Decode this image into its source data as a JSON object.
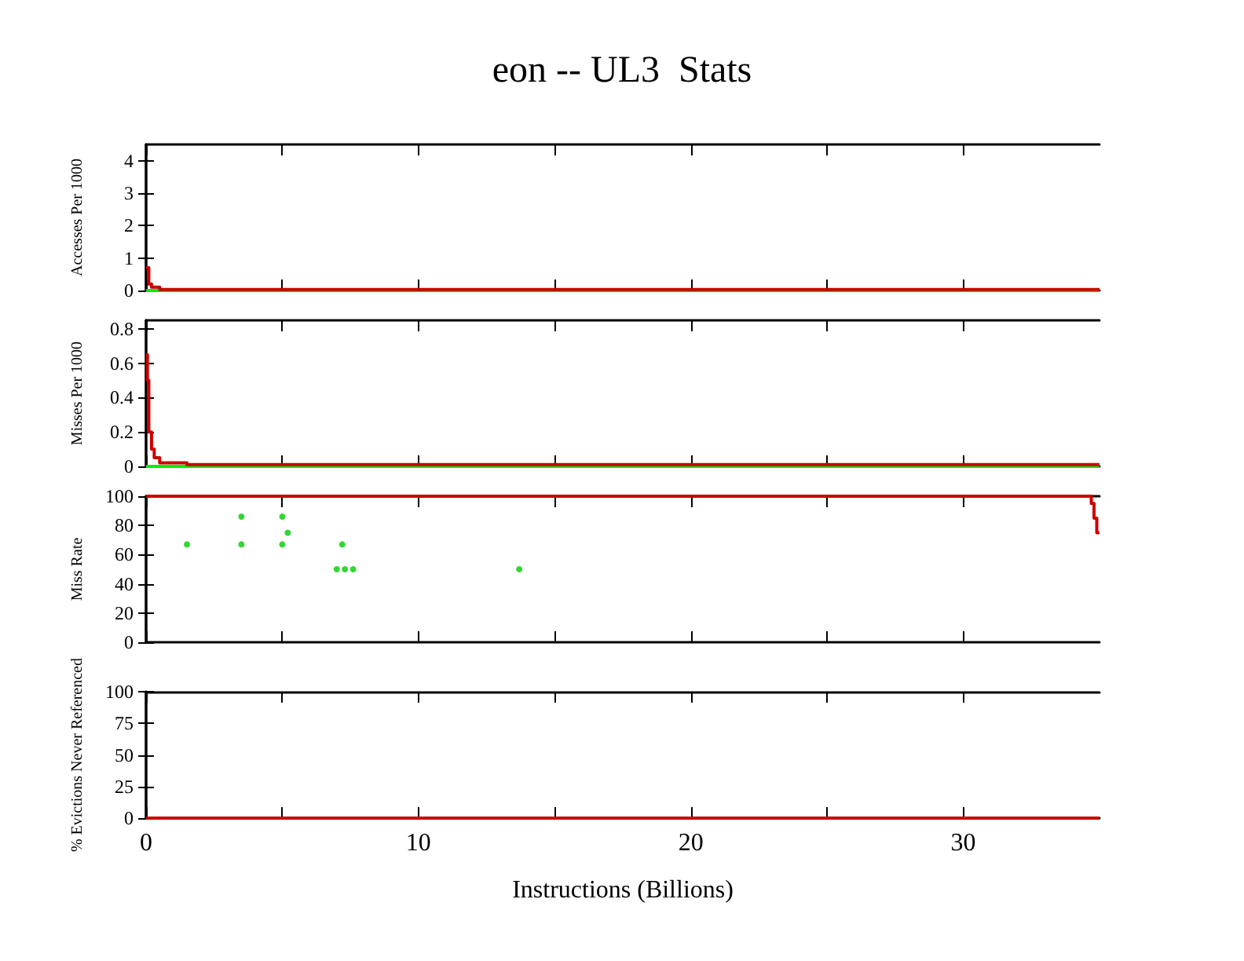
{
  "chart_data": [
    {
      "type": "step",
      "title": "eon -- UL3  Stats",
      "ylabel": "Accesses Per 1000",
      "xlim": [
        0,
        35
      ],
      "xticks": [
        0,
        {
          "value": 5,
          "label": null
        },
        10,
        {
          "value": 15,
          "label": null
        },
        20,
        {
          "value": 25,
          "label": null
        },
        30
      ],
      "ylim": [
        0,
        4.5
      ],
      "yticks": [
        0,
        1,
        2,
        3,
        4
      ],
      "tick_labels": "y",
      "series": [
        {
          "type": "line",
          "color": "#00ee00",
          "x": [
            0,
            35
          ],
          "values": [
            0,
            0
          ]
        },
        {
          "color": "#cc0000",
          "x": [
            0,
            0.1,
            0.2,
            0.5,
            35
          ],
          "values": [
            0.7,
            0.2,
            0.1,
            0.03,
            0.03
          ]
        }
      ]
    },
    {
      "type": "step",
      "ylabel": "Misses Per 1000",
      "xlim": [
        0,
        35
      ],
      "xticks": [
        0,
        {
          "value": 5,
          "label": null
        },
        10,
        {
          "value": 15,
          "label": null
        },
        20,
        {
          "value": 25,
          "label": null
        },
        30
      ],
      "ylim": [
        0,
        0.85
      ],
      "yticks": [
        0,
        0.2,
        0.4,
        0.6,
        0.8
      ],
      "tick_labels": "y",
      "series": [
        {
          "type": "line",
          "color": "#00ee00",
          "x": [
            0,
            35
          ],
          "values": [
            0,
            0
          ]
        },
        {
          "color": "#cc0000",
          "x": [
            0,
            0.05,
            0.1,
            0.2,
            0.3,
            0.5,
            1.5,
            35
          ],
          "values": [
            0.65,
            0.5,
            0.2,
            0.1,
            0.05,
            0.02,
            0.01,
            0.01
          ]
        }
      ]
    },
    {
      "type": "step",
      "ylabel": "Miss Rate",
      "xlim": [
        0,
        35
      ],
      "xticks": [
        0,
        {
          "value": 5,
          "label": null
        },
        10,
        {
          "value": 15,
          "label": null
        },
        20,
        {
          "value": 25,
          "label": null
        },
        30
      ],
      "ylim": [
        0,
        100
      ],
      "yticks": [
        0,
        20,
        40,
        60,
        80,
        100
      ],
      "tick_labels": "y",
      "series": [
        {
          "type": "scatter",
          "color": "#00cc00",
          "x": [
            1.5,
            3.5,
            3.5,
            5,
            5,
            5.2,
            7,
            7.2,
            7.3,
            7.6,
            13.7
          ],
          "values": [
            67,
            86,
            67,
            86,
            67,
            75,
            50,
            67,
            50,
            50,
            50
          ]
        },
        {
          "color": "#cc0000",
          "x": [
            0,
            34.7,
            34.8,
            34.9,
            35
          ],
          "values": [
            100,
            95,
            85,
            75,
            75
          ]
        }
      ]
    },
    {
      "type": "step",
      "ylabel": "% Evictions Never Referenced",
      "xlabel": "Instructions (Billions)",
      "xlim": [
        0,
        35
      ],
      "xticks": [
        0,
        {
          "value": 5,
          "label": null
        },
        10,
        {
          "value": 15,
          "label": null
        },
        20,
        {
          "value": 25,
          "label": null
        },
        30
      ],
      "ylim": [
        0,
        100
      ],
      "yticks": [
        0,
        25,
        50,
        75,
        100
      ],
      "series": [
        {
          "color": "#cc0000",
          "x": [
            0,
            35
          ],
          "values": [
            0,
            0
          ]
        }
      ]
    }
  ]
}
